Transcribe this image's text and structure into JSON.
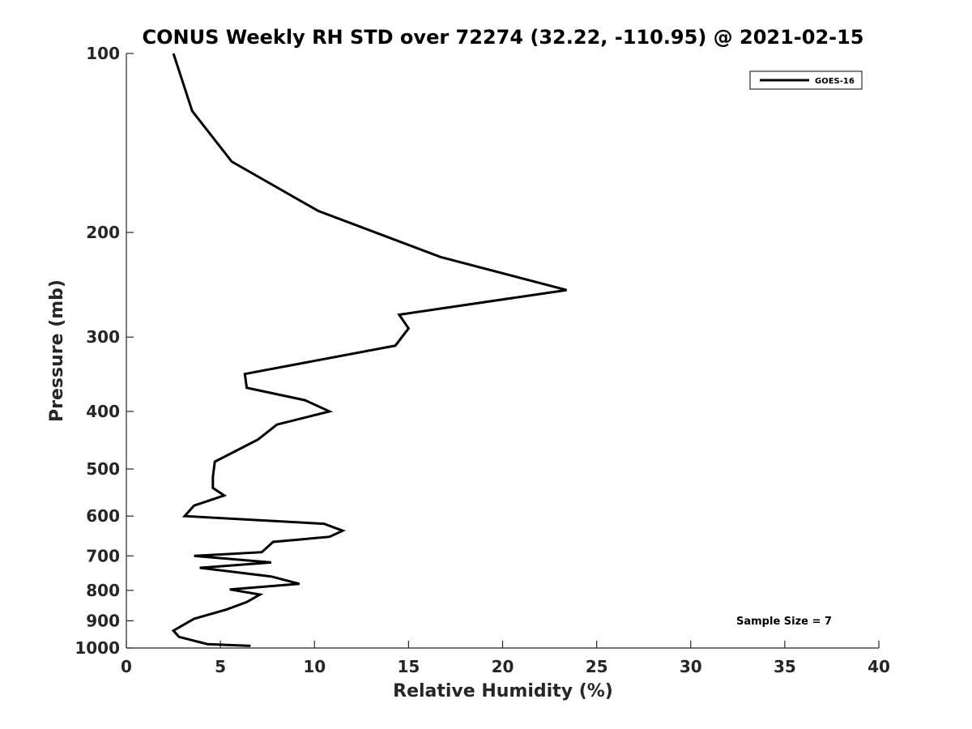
{
  "chart_data": {
    "type": "line",
    "title": "CONUS Weekly RH STD over 72274 (32.22, -110.95) @ 2021-02-15",
    "xlabel": "Relative Humidity (%)",
    "ylabel": "Pressure (mb)",
    "xlim": [
      0,
      40
    ],
    "ylim": [
      100,
      1000
    ],
    "yscale": "log",
    "y_reversed": true,
    "grid": false,
    "legend_position": "top-right",
    "x_ticks": [
      "0",
      "5",
      "10",
      "15",
      "20",
      "25",
      "30",
      "35",
      "40"
    ],
    "y_ticks": [
      "100",
      "200",
      "300",
      "400",
      "500",
      "600",
      "700",
      "800",
      "900",
      "1000"
    ],
    "series": [
      {
        "name": "GOES-16",
        "color": "#000000",
        "points": [
          [
            2.5,
            100
          ],
          [
            3.5,
            125
          ],
          [
            5.6,
            152
          ],
          [
            10.2,
            184
          ],
          [
            16.7,
            220
          ],
          [
            23.4,
            250
          ],
          [
            14.5,
            275
          ],
          [
            15.0,
            290
          ],
          [
            14.3,
            310
          ],
          [
            6.3,
            346
          ],
          [
            6.4,
            365
          ],
          [
            9.5,
            383
          ],
          [
            10.8,
            400
          ],
          [
            8.0,
            421
          ],
          [
            7.0,
            446
          ],
          [
            4.7,
            486
          ],
          [
            4.6,
            516
          ],
          [
            4.6,
            538
          ],
          [
            5.2,
            554
          ],
          [
            3.6,
            576
          ],
          [
            3.1,
            600
          ],
          [
            10.5,
            618
          ],
          [
            11.5,
            635
          ],
          [
            10.8,
            650
          ],
          [
            7.8,
            663
          ],
          [
            7.2,
            690
          ],
          [
            3.6,
            700
          ],
          [
            7.7,
            718
          ],
          [
            3.9,
            733
          ],
          [
            7.7,
            758
          ],
          [
            9.2,
            780
          ],
          [
            5.5,
            797
          ],
          [
            7.1,
            813
          ],
          [
            6.4,
            837
          ],
          [
            5.3,
            862
          ],
          [
            3.6,
            893
          ],
          [
            2.5,
            935
          ],
          [
            2.8,
            958
          ],
          [
            4.3,
            985
          ],
          [
            6.6,
            992
          ]
        ]
      }
    ],
    "annotation": "Sample Size = 7"
  }
}
